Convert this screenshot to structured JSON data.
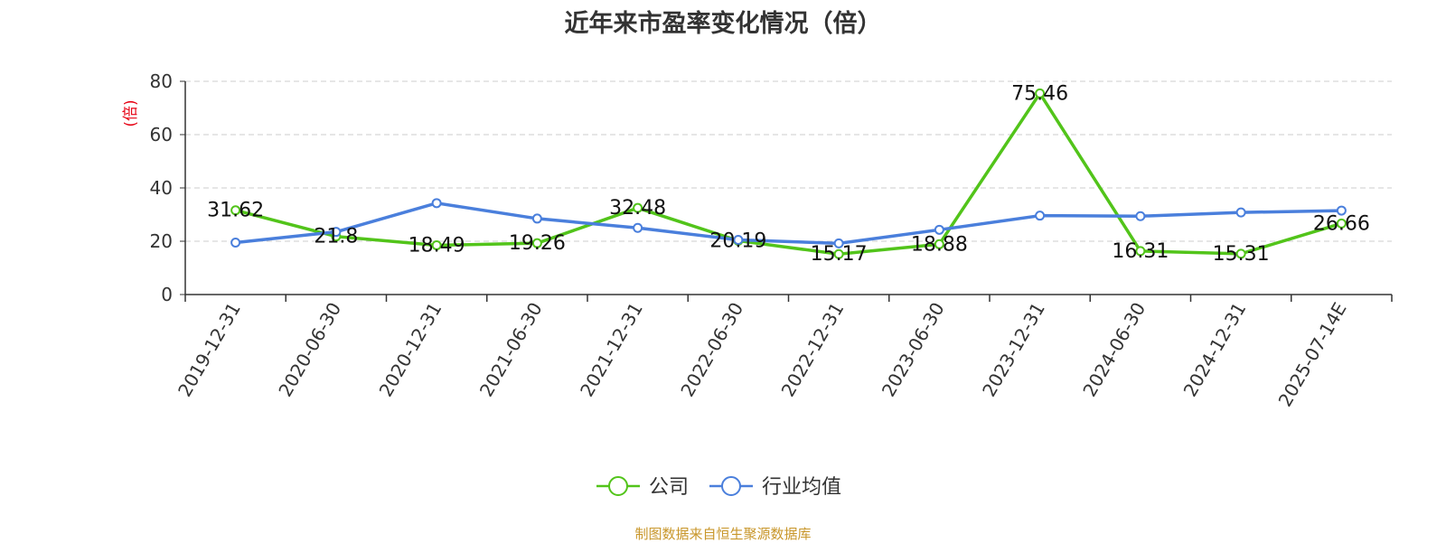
{
  "chart_data": {
    "type": "line",
    "title": "近年来市盈率变化情况（倍）",
    "ylabel": "(倍)",
    "xlabel": "",
    "ylim": [
      0,
      80
    ],
    "yticks": [
      "0",
      "20",
      "40",
      "60",
      "80"
    ],
    "grid": true,
    "legend_position": "bottom-center",
    "categories": [
      "2019-12-31",
      "2020-06-30",
      "2020-12-31",
      "2021-06-30",
      "2021-12-31",
      "2022-06-30",
      "2022-12-31",
      "2023-06-30",
      "2023-12-31",
      "2024-06-30",
      "2024-12-31",
      "2025-07-14E"
    ],
    "series": [
      {
        "name": "公司",
        "color": "#52c41a",
        "values": [
          31.62,
          21.8,
          18.49,
          19.26,
          32.48,
          20.19,
          15.17,
          18.88,
          75.46,
          16.31,
          15.31,
          26.66
        ],
        "labels": [
          "31.62",
          "21.8",
          "18.49",
          "19.26",
          "32.48",
          "20.19",
          "15.17",
          "18.88",
          "75.46",
          "16.31",
          "15.31",
          "26.66"
        ]
      },
      {
        "name": "行业均值",
        "color": "#4a7fdc",
        "values": [
          19.5,
          23.5,
          34.3,
          28.5,
          25.0,
          20.5,
          19.2,
          24.3,
          29.6,
          29.4,
          30.8,
          31.5
        ]
      }
    ]
  },
  "footer": {
    "source": "制图数据来自恒生聚源数据库"
  },
  "colors": {
    "title": "#333333",
    "ylabel": "#e60012",
    "grid": "#cccccc",
    "axis": "#333333",
    "source": "#c8962a"
  }
}
